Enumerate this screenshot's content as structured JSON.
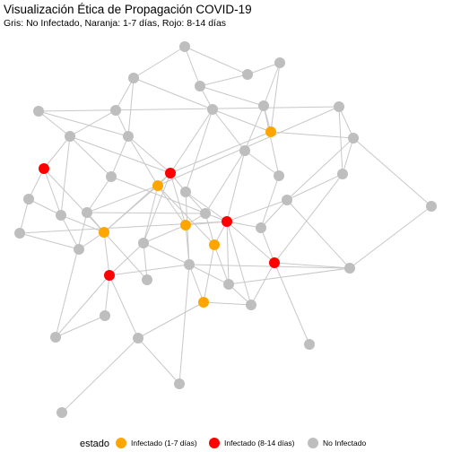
{
  "title": "Visualización Ética de Propagación COVID-19",
  "subtitle": "Gris: No Infectado, Naranja: 1-7 días, Rojo: 8-14 días",
  "legend": {
    "title": "estado",
    "items": [
      {
        "label": "Infectado (1-7 días)",
        "color": "#FFA500"
      },
      {
        "label": "Infectado (8-14 días)",
        "color": "#FF0000"
      },
      {
        "label": "No Infectado",
        "color": "#BEBEBE"
      }
    ]
  },
  "colors": {
    "edge": "#c8c8c8",
    "gray": "#BEBEBE",
    "orange": "#FFA500",
    "red": "#FF0000"
  }
}
